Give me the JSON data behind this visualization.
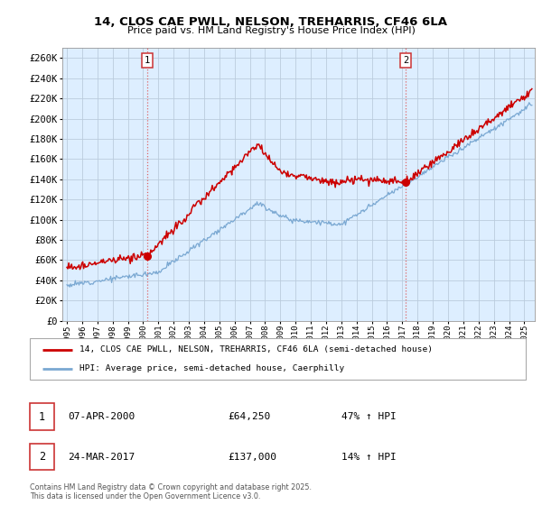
{
  "title_line1": "14, CLOS CAE PWLL, NELSON, TREHARRIS, CF46 6LA",
  "title_line2": "Price paid vs. HM Land Registry's House Price Index (HPI)",
  "ylabel_ticks": [
    "£0",
    "£20K",
    "£40K",
    "£60K",
    "£80K",
    "£100K",
    "£120K",
    "£140K",
    "£160K",
    "£180K",
    "£200K",
    "£220K",
    "£240K",
    "£260K"
  ],
  "ytick_values": [
    0,
    20000,
    40000,
    60000,
    80000,
    100000,
    120000,
    140000,
    160000,
    180000,
    200000,
    220000,
    240000,
    260000
  ],
  "ylim": [
    0,
    270000
  ],
  "xlim_left": 1994.7,
  "xlim_right": 2025.7,
  "dashed_line1_year": 2000.27,
  "dashed_line2_year": 2017.23,
  "marker1_year": 2000.27,
  "marker1_value": 64250,
  "marker2_year": 2017.23,
  "marker2_value": 137000,
  "legend_line1": "14, CLOS CAE PWLL, NELSON, TREHARRIS, CF46 6LA (semi-detached house)",
  "legend_line2": "HPI: Average price, semi-detached house, Caerphilly",
  "table_row1_num": "1",
  "table_row1_date": "07-APR-2000",
  "table_row1_price": "£64,250",
  "table_row1_hpi": "47% ↑ HPI",
  "table_row2_num": "2",
  "table_row2_date": "24-MAR-2017",
  "table_row2_price": "£137,000",
  "table_row2_hpi": "14% ↑ HPI",
  "footnote_line1": "Contains HM Land Registry data © Crown copyright and database right 2025.",
  "footnote_line2": "This data is licensed under the Open Government Licence v3.0.",
  "color_red": "#cc0000",
  "color_blue": "#7aa8d2",
  "color_bg": "#ddeeff",
  "color_dashed": "#dd6666",
  "grid_color": "#bbccdd",
  "marker_box_color": "#cc3333"
}
